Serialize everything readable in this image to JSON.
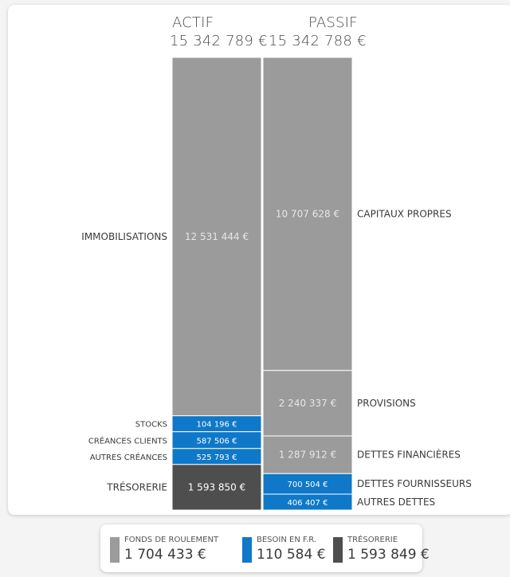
{
  "chart_data": {
    "type": "stacked-bar",
    "columns": [
      {
        "name": "ACTIF",
        "total": "15 342 789 €",
        "segments": [
          {
            "label": "IMMOBILISATIONS",
            "value": 12531444,
            "value_label": "12 531 444 €",
            "color": "#9b9b9b"
          },
          {
            "label": "STOCKS",
            "value": 104196,
            "value_label": "104 196 €",
            "color": "#0f78c8"
          },
          {
            "label": "CRÉANCES CLIENTS",
            "value": 587506,
            "value_label": "587 506 €",
            "color": "#0f78c8"
          },
          {
            "label": "AUTRES CRÉANCES",
            "value": 525793,
            "value_label": "525 793 €",
            "color": "#0f78c8"
          },
          {
            "label": "TRÉSORERIE",
            "value": 1593850,
            "value_label": "1 593 850 €",
            "color": "#4e4e4e"
          }
        ]
      },
      {
        "name": "PASSIF",
        "total": "15 342 788 €",
        "segments": [
          {
            "label": "CAPITAUX PROPRES",
            "value": 10707628,
            "value_label": "10 707 628 €",
            "color": "#9b9b9b"
          },
          {
            "label": "PROVISIONS",
            "value": 2240337,
            "value_label": "2 240 337 €",
            "color": "#9b9b9b"
          },
          {
            "label": "DETTES FINANCIÈRES",
            "value": 1287912,
            "value_label": "1 287 912 €",
            "color": "#9b9b9b"
          },
          {
            "label": "DETTES FOURNISSEURS",
            "value": 700504,
            "value_label": "700 504 €",
            "color": "#0f78c8"
          },
          {
            "label": "AUTRES DETTES",
            "value": 406407,
            "value_label": "406 407 €",
            "color": "#0f78c8"
          }
        ]
      }
    ]
  },
  "legend": [
    {
      "label": "FONDS DE ROULEMENT",
      "value": "1 704 433 €",
      "color": "#9b9b9b"
    },
    {
      "label": "BESOIN EN F.R.",
      "value": "110 584 €",
      "color": "#0f78c8"
    },
    {
      "label": "TRÉSORERIE",
      "value": "1 593 849 €",
      "color": "#4e4e4e"
    }
  ]
}
